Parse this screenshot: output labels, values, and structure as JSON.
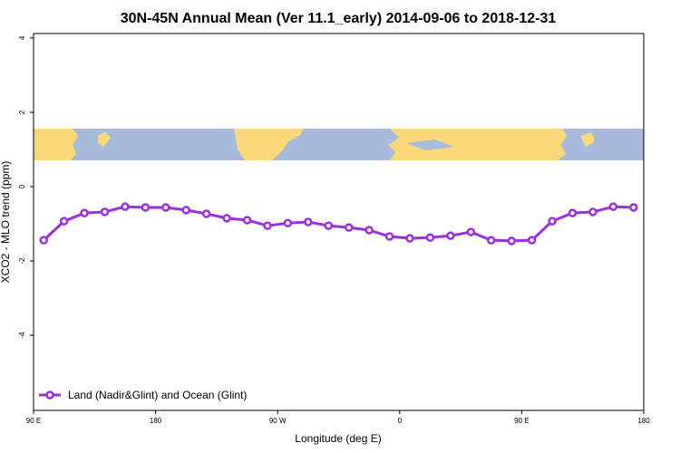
{
  "chart_data": {
    "type": "line",
    "title": "30N-45N Annual Mean (Ver 11.1_early)   2014-09-06 to 2018-12-31",
    "xlabel": "Longitude (deg E)",
    "ylabel": "XCO2 - MLO trend (ppm)",
    "x": [
      97.5,
      112.5,
      127.5,
      142.5,
      157.5,
      172.5,
      187.5,
      202.5,
      217.5,
      232.5,
      247.5,
      262.5,
      277.5,
      292.5,
      307.5,
      322.5,
      337.5,
      352.5,
      367.5,
      382.5,
      397.5,
      412.5,
      427.5,
      442.5,
      457.5,
      472.5,
      487.5,
      502.5,
      517.5,
      532.5
    ],
    "series": [
      {
        "name": "Land (Nadir&Glint) and Ocean (Glint)",
        "color": "#9b30e0",
        "values": [
          -1.44,
          -0.93,
          -0.71,
          -0.68,
          -0.54,
          -0.56,
          -0.56,
          -0.63,
          -0.73,
          -0.85,
          -0.9,
          -1.05,
          -0.98,
          -0.95,
          -1.05,
          -1.1,
          -1.17,
          -1.34,
          -1.39,
          -1.37,
          -1.32,
          -1.22,
          -1.44,
          -1.46,
          -1.44,
          -0.93,
          -0.71,
          -0.68,
          -0.54,
          -0.56
        ]
      }
    ],
    "xlim": [
      90,
      540
    ],
    "xticks": [
      {
        "value": 90,
        "label": "90 E"
      },
      180,
      {
        "value": 270,
        "label": "90 W"
      },
      {
        "value": 360,
        "label": "0"
      },
      {
        "value": 450,
        "label": "90 E"
      },
      {
        "value": 540,
        "label": "180"
      }
    ],
    "ylim": [
      -6.02,
      4.12
    ],
    "yticks": [
      -4,
      -2,
      0,
      2,
      4
    ],
    "legend": "bottom-left"
  }
}
